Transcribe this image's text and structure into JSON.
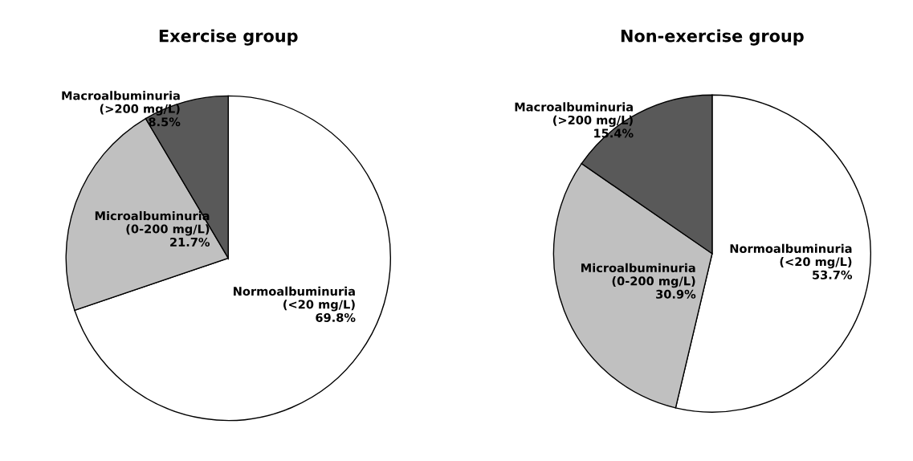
{
  "chart_data": [
    {
      "type": "pie",
      "title": "Exercise group",
      "categories": [
        "Normoalbuminuria\n(<20 mg/L)",
        "Microalbuminuria\n(0-200 mg/L)",
        "Macroalbuminuria\n(>200 mg/L)"
      ],
      "values": [
        69.8,
        21.7,
        8.5
      ],
      "value_labels": [
        "69.8%",
        "21.7%",
        "8.5%"
      ],
      "colors": [
        "#ffffff",
        "#c0c0c0",
        "#595959"
      ]
    },
    {
      "type": "pie",
      "title": "Non-exercise group",
      "categories": [
        "Normoalbuminuria\n(<20 mg/L)",
        "Microalbuminuria\n(0-200 mg/L)",
        "Macroalbuminuria\n(>200 mg/L)"
      ],
      "values": [
        53.7,
        30.9,
        15.4
      ],
      "value_labels": [
        "53.7%",
        "30.9%",
        "15.4%"
      ],
      "colors": [
        "#ffffff",
        "#c0c0c0",
        "#595959"
      ]
    }
  ]
}
